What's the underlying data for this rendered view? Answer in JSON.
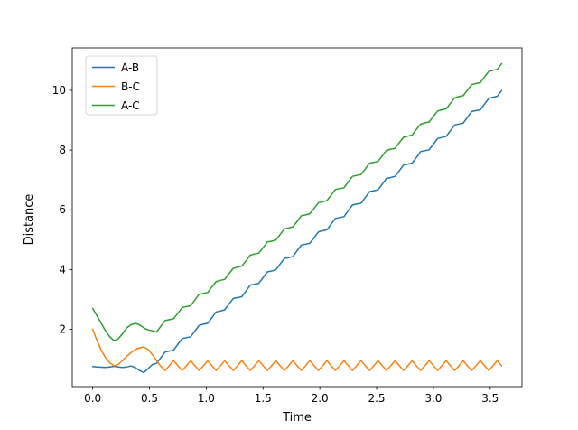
{
  "figure": {
    "background": "#ffffff"
  },
  "chart_data": {
    "type": "line",
    "title": "",
    "xlabel": "Time",
    "ylabel": "Distance",
    "xlim": [
      -0.18,
      3.78
    ],
    "ylim": [
      0.08,
      11.42
    ],
    "grid": false,
    "xticks": {
      "values": [
        0.0,
        0.5,
        1.0,
        1.5,
        2.0,
        2.5,
        3.0,
        3.5
      ],
      "labels": [
        "0.0",
        "0.5",
        "1.0",
        "1.5",
        "2.0",
        "2.5",
        "3.0",
        "3.5"
      ]
    },
    "yticks": {
      "values": [
        2,
        4,
        6,
        8,
        10
      ],
      "labels": [
        "2",
        "4",
        "6",
        "8",
        "10"
      ]
    },
    "legend": {
      "position": "upper-left",
      "entries": [
        "A-B",
        "B-C",
        "A-C"
      ]
    },
    "series": [
      {
        "name": "A-B",
        "color": "#1f77b4",
        "x_start": 0,
        "x_step": 0.0375,
        "values": [
          0.75,
          0.74,
          0.73,
          0.72,
          0.74,
          0.76,
          0.74,
          0.72,
          0.74,
          0.77,
          0.72,
          0.62,
          0.55,
          0.68,
          0.82,
          0.86,
          1.05,
          1.24,
          1.27,
          1.3,
          1.5,
          1.69,
          1.72,
          1.75,
          1.94,
          2.13,
          2.17,
          2.2,
          2.39,
          2.58,
          2.61,
          2.65,
          2.84,
          3.03,
          3.06,
          3.09,
          3.28,
          3.48,
          3.51,
          3.54,
          3.73,
          3.92,
          3.95,
          3.99,
          4.18,
          4.37,
          4.4,
          4.43,
          4.63,
          4.82,
          4.85,
          4.88,
          5.07,
          5.26,
          5.3,
          5.33,
          5.52,
          5.71,
          5.74,
          5.77,
          5.97,
          6.16,
          6.19,
          6.22,
          6.41,
          6.61,
          6.64,
          6.67,
          6.86,
          7.05,
          7.08,
          7.12,
          7.31,
          7.5,
          7.53,
          7.56,
          7.75,
          7.95,
          7.98,
          8.01,
          8.2,
          8.39,
          8.42,
          8.46,
          8.65,
          8.84,
          8.87,
          8.9,
          9.1,
          9.29,
          9.32,
          9.35,
          9.54,
          9.73,
          9.77,
          9.8,
          9.99
        ]
      },
      {
        "name": "B-C",
        "color": "#ff7f0e",
        "x_start": 0,
        "x_step": 0.0375,
        "values": [
          2.0,
          1.62,
          1.3,
          1.05,
          0.88,
          0.78,
          0.82,
          0.95,
          1.1,
          1.22,
          1.32,
          1.38,
          1.4,
          1.33,
          1.15,
          0.95,
          0.75,
          0.62,
          0.78,
          0.95,
          0.78,
          0.62,
          0.78,
          0.95,
          0.78,
          0.62,
          0.78,
          0.95,
          0.78,
          0.62,
          0.78,
          0.95,
          0.78,
          0.62,
          0.78,
          0.95,
          0.78,
          0.62,
          0.78,
          0.95,
          0.78,
          0.62,
          0.78,
          0.95,
          0.78,
          0.62,
          0.78,
          0.95,
          0.78,
          0.62,
          0.78,
          0.95,
          0.78,
          0.62,
          0.78,
          0.95,
          0.78,
          0.62,
          0.78,
          0.95,
          0.78,
          0.62,
          0.78,
          0.95,
          0.78,
          0.62,
          0.78,
          0.95,
          0.78,
          0.62,
          0.78,
          0.95,
          0.78,
          0.62,
          0.78,
          0.95,
          0.78,
          0.62,
          0.78,
          0.95,
          0.78,
          0.62,
          0.78,
          0.95,
          0.78,
          0.62,
          0.78,
          0.95,
          0.78,
          0.62,
          0.78,
          0.95,
          0.78,
          0.62,
          0.78,
          0.95,
          0.78
        ]
      },
      {
        "name": "A-C",
        "color": "#2ca02c",
        "x_start": 0,
        "x_step": 0.0375,
        "values": [
          2.7,
          2.45,
          2.2,
          1.95,
          1.75,
          1.62,
          1.68,
          1.85,
          2.05,
          2.15,
          2.2,
          2.15,
          2.05,
          1.98,
          1.95,
          1.91,
          2.1,
          2.29,
          2.32,
          2.35,
          2.54,
          2.73,
          2.76,
          2.79,
          2.98,
          3.17,
          3.2,
          3.23,
          3.42,
          3.6,
          3.64,
          3.67,
          3.86,
          4.04,
          4.08,
          4.11,
          4.29,
          4.48,
          4.52,
          4.55,
          4.73,
          4.92,
          4.95,
          4.99,
          5.17,
          5.36,
          5.39,
          5.43,
          5.61,
          5.8,
          5.83,
          5.87,
          6.05,
          6.24,
          6.27,
          6.31,
          6.49,
          6.68,
          6.71,
          6.74,
          6.93,
          7.12,
          7.15,
          7.18,
          7.37,
          7.56,
          7.59,
          7.62,
          7.81,
          7.99,
          8.03,
          8.06,
          8.25,
          8.43,
          8.47,
          8.5,
          8.69,
          8.87,
          8.91,
          8.94,
          9.13,
          9.31,
          9.35,
          9.38,
          9.57,
          9.75,
          9.79,
          9.82,
          10.01,
          10.19,
          10.23,
          10.26,
          10.45,
          10.63,
          10.67,
          10.7,
          10.89
        ]
      }
    ]
  }
}
